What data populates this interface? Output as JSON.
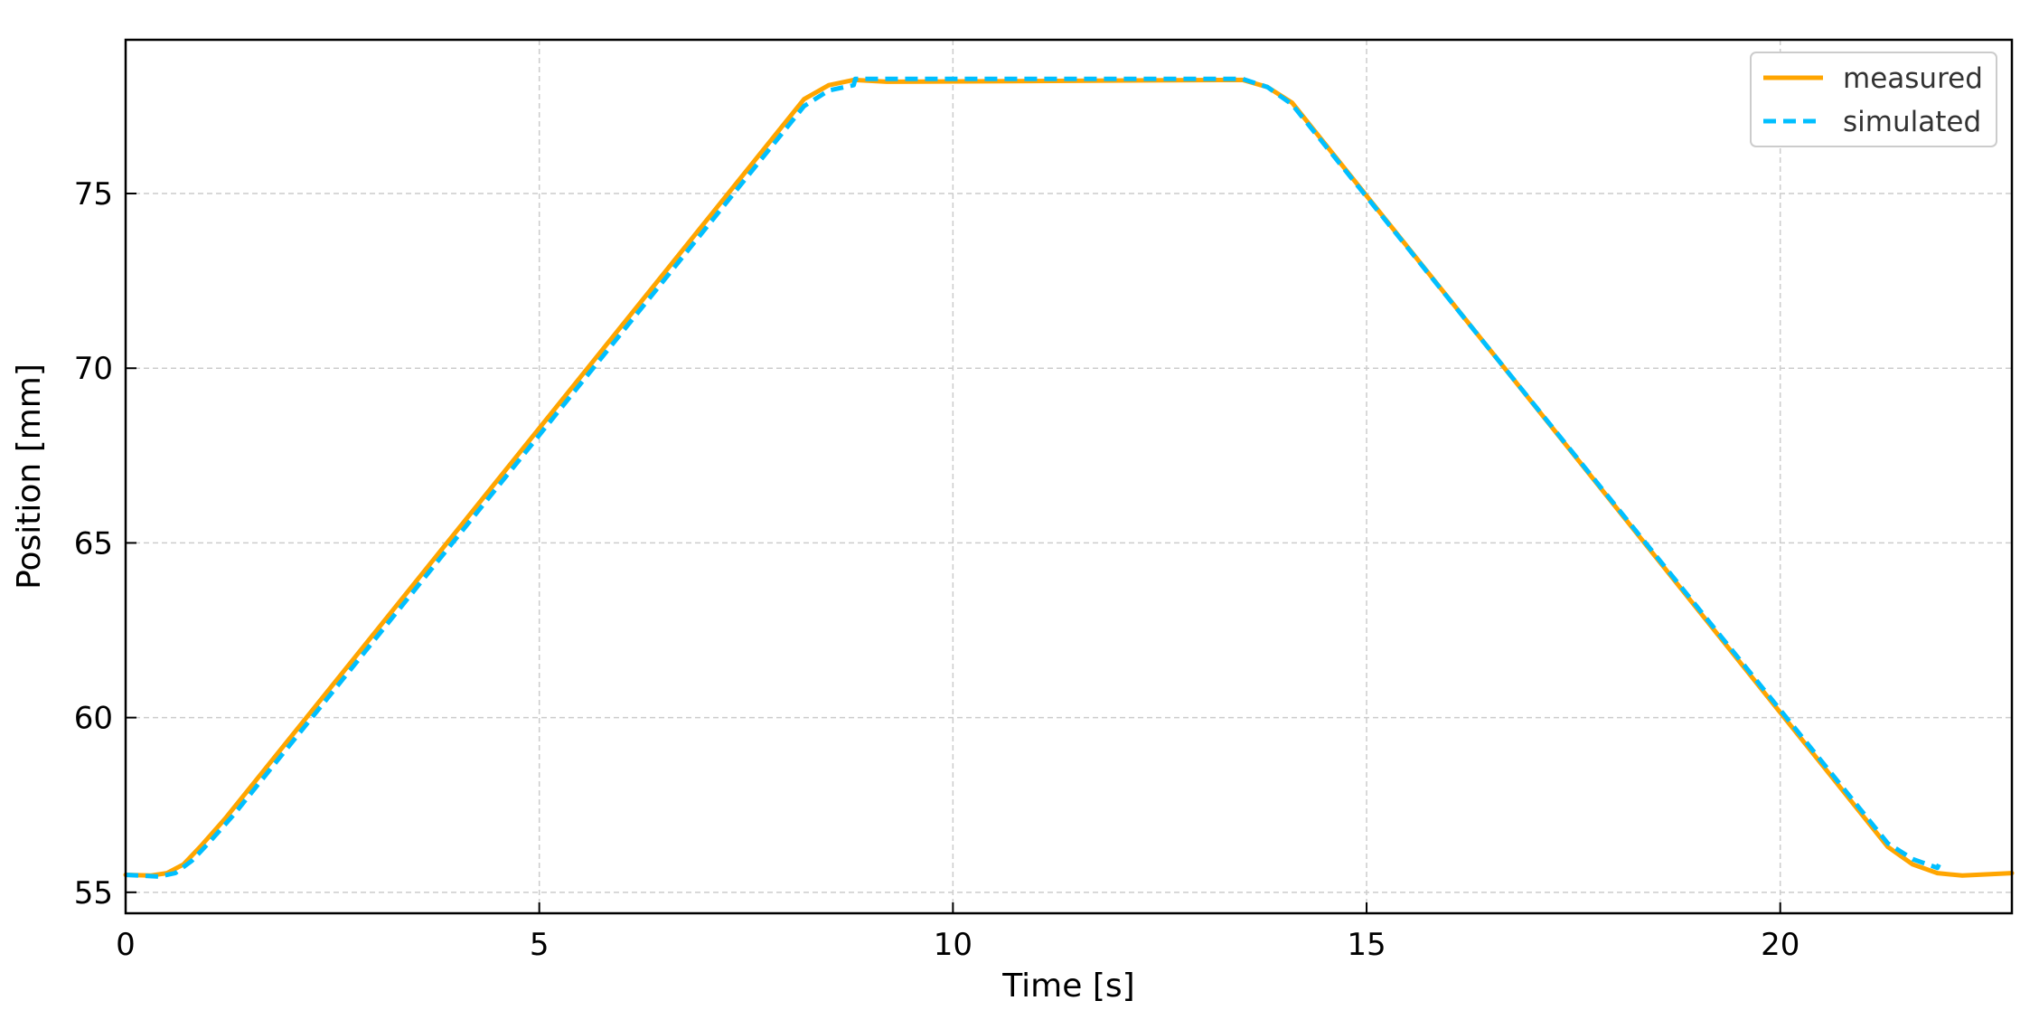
{
  "chart_data": {
    "type": "line",
    "xlabel": "Time [s]",
    "ylabel": "Position [mm]",
    "xlim": [
      0,
      22.8
    ],
    "ylim": [
      54.4,
      79.4
    ],
    "xticks": [
      0,
      5,
      10,
      15,
      20
    ],
    "yticks": [
      55,
      60,
      65,
      70,
      75
    ],
    "grid": true,
    "legend_position": "top-right",
    "series": [
      {
        "name": "measured",
        "color": "#FFA500",
        "style": "solid",
        "points": [
          [
            0,
            55.5
          ],
          [
            0.3,
            55.48
          ],
          [
            0.5,
            55.55
          ],
          [
            0.7,
            55.8
          ],
          [
            0.9,
            56.3
          ],
          [
            1.2,
            57.1
          ],
          [
            8.2,
            77.7
          ],
          [
            8.5,
            78.1
          ],
          [
            8.8,
            78.25
          ],
          [
            9.2,
            78.2
          ],
          [
            13.5,
            78.25
          ],
          [
            13.8,
            78.05
          ],
          [
            14.1,
            77.6
          ],
          [
            21.3,
            56.3
          ],
          [
            21.6,
            55.8
          ],
          [
            21.9,
            55.55
          ],
          [
            22.2,
            55.48
          ],
          [
            22.8,
            55.55
          ]
        ]
      },
      {
        "name": "simulated",
        "color": "#00BFFF",
        "style": "dashed",
        "points": [
          [
            0,
            55.5
          ],
          [
            0.4,
            55.45
          ],
          [
            0.6,
            55.55
          ],
          [
            0.8,
            55.9
          ],
          [
            1.0,
            56.4
          ],
          [
            1.3,
            57.2
          ],
          [
            8.2,
            77.5
          ],
          [
            8.5,
            77.95
          ],
          [
            8.8,
            78.1
          ],
          [
            8.82,
            78.28
          ],
          [
            13.5,
            78.28
          ],
          [
            13.8,
            78.05
          ],
          [
            14.1,
            77.55
          ],
          [
            21.3,
            56.4
          ],
          [
            21.6,
            55.95
          ],
          [
            21.9,
            55.7
          ],
          [
            21.92,
            55.8
          ]
        ]
      }
    ]
  }
}
